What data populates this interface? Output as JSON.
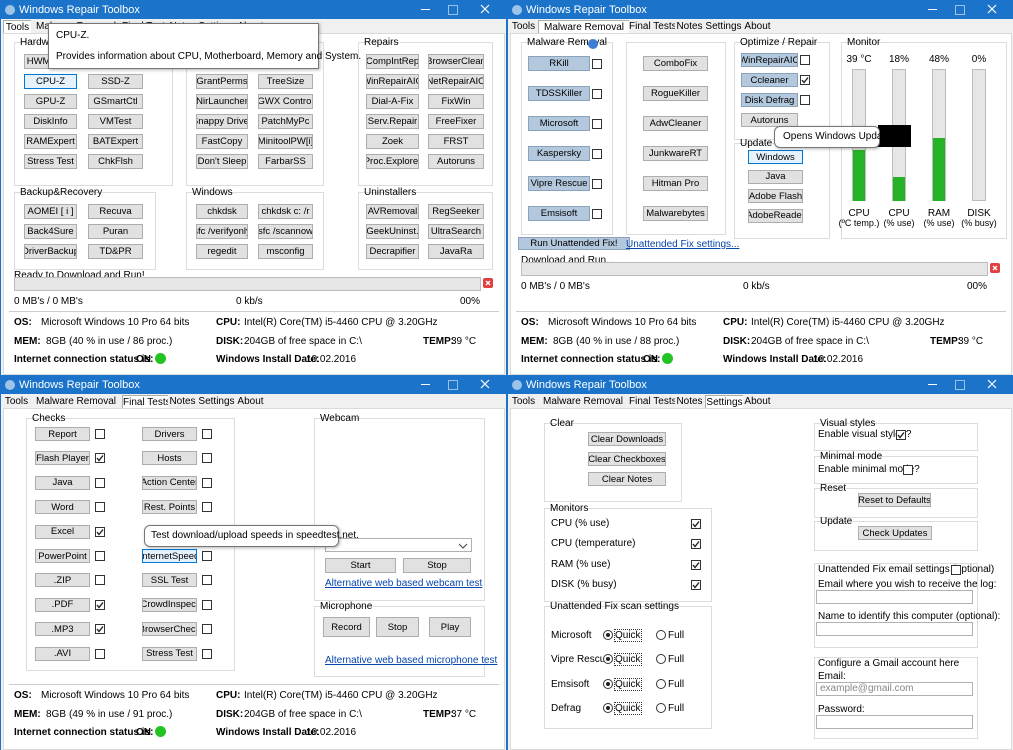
{
  "app_title": "Windows Repair Toolbox",
  "tabs": [
    "Tools",
    "Malware Removal",
    "Final Tests",
    "Notes",
    "Settings",
    "About"
  ],
  "footer_labels": {
    "os": "OS:",
    "cpu": "CPU:",
    "mem": "MEM:",
    "disk": "DISK:",
    "temp": "TEMP:",
    "internet": "Internet connection status is:",
    "install_date": "Windows Install Date:"
  },
  "tools_window": {
    "tooltip": {
      "title": "CPU-Z.",
      "text": "Provides information about CPU, Motherboard, Memory and System."
    },
    "hardware": {
      "title": "Hardware",
      "buttons": [
        "HWMonitor",
        "CPU-Z",
        "SSD-Z",
        "GPU-Z",
        "GSmartCtl",
        "DiskInfo",
        "VMTest",
        "RAMExpert",
        "BATExpert",
        "Stress Test",
        "ChkFlsh"
      ]
    },
    "tools": {
      "buttons": [
        "GrantPerms",
        "TreeSize",
        "NirLauncher",
        "GWX Control",
        "Snappy Driver",
        "PatchMyPc",
        "FastCopy",
        "MinitoolPW[i]",
        "Don't Sleep",
        "FarbarSS"
      ]
    },
    "repairs": {
      "title": "Repairs",
      "buttons": [
        "CompIntRep",
        "BrowserClean",
        "WinRepairAIO",
        "NetRepairAIO",
        "Dial-A-Fix",
        "FixWin",
        "Serv.Repair",
        "FreeFixer",
        "Zoek",
        "FRST",
        "Proc.Explorer",
        "Autoruns"
      ]
    },
    "backup": {
      "title": "Backup&Recovery",
      "buttons": [
        "AOMEI [ i ]",
        "Recuva",
        "Back4Sure",
        "Puran",
        "DriverBackup",
        "TD&PR"
      ]
    },
    "windows": {
      "title": "Windows",
      "buttons": [
        "chkdsk",
        "chkdsk c: /r",
        "sfc /verifyonly",
        "sfc /scannow",
        "regedit",
        "msconfig"
      ]
    },
    "uninstallers": {
      "title": "Uninstallers",
      "buttons": [
        "AVRemoval",
        "RegSeeker",
        "GeekUninst.",
        "UltraSearch",
        "Decrapifier",
        "JavaRa"
      ]
    },
    "download": {
      "status": "Ready to Download and Run!",
      "size": "0 MB's / 0 MB's",
      "speed": "0 kb/s",
      "percent": "00%"
    },
    "footer": {
      "os": "Microsoft Windows 10 Pro 64 bits",
      "cpu": "Intel(R) Core(TM) i5-4460  CPU @ 3.20GHz",
      "mem": "8GB",
      "mem_detail": "(40 % in use / 86 proc.)",
      "disk": "204GB of free space in C:\\",
      "temp": "39 °C",
      "internet": "ON",
      "install_date": "10.02.2016"
    }
  },
  "malware_window": {
    "malware": {
      "title": "Malware Removal",
      "buttons": [
        "RKill",
        "TDSSKiller",
        "Microsoft",
        "Kaspersky",
        "Vipre Rescue",
        "Emsisoft"
      ],
      "checked": [
        false,
        false,
        false,
        false,
        false,
        false
      ],
      "more_buttons": [
        "ComboFix",
        "RogueKiller",
        "AdwCleaner",
        "JunkwareRT",
        "Hitman Pro",
        "Malwarebytes"
      ]
    },
    "run_button": "Run Unattended Fix!",
    "settings_link": "Unattended Fix settings...",
    "optimize": {
      "title": "Optimize / Repair",
      "buttons": [
        "WinRepairAIO",
        "Ccleaner",
        "Disk Defrag",
        "Autoruns"
      ],
      "checked": [
        false,
        true,
        false
      ]
    },
    "update": {
      "title": "Update",
      "buttons": [
        "Windows",
        "Java",
        "Adobe Flash",
        "AdobeReader"
      ]
    },
    "tooltip": "Opens Windows Update.",
    "monitor": {
      "title": "Monitor",
      "gauges": [
        {
          "value": 39,
          "label": "39 °C",
          "name": "CPU",
          "unit": "(ºC temp.)"
        },
        {
          "value": 18,
          "label": "18%",
          "name": "CPU",
          "unit": "(% use)"
        },
        {
          "value": 48,
          "label": "48%",
          "name": "RAM",
          "unit": "(% use)"
        },
        {
          "value": 0,
          "label": "0%",
          "name": "DISK",
          "unit": "(% busy)"
        }
      ]
    },
    "download": {
      "status": "Download and Run...",
      "size": "0 MB's / 0 MB's",
      "speed": "0 kb/s",
      "percent": "00%"
    },
    "footer": {
      "os": "Microsoft Windows 10 Pro 64 bits",
      "cpu": "Intel(R) Core(TM) i5-4460  CPU @ 3.20GHz",
      "mem": "8GB",
      "mem_detail": "(40 % in use / 88 proc.)",
      "disk": "204GB of free space in C:\\",
      "temp": "39 °C",
      "internet": "ON",
      "install_date": "10.02.2016"
    }
  },
  "final_tests_window": {
    "checks": {
      "title": "Checks",
      "buttons": [
        "Report",
        "Flash Player",
        "Java",
        "Word",
        "Excel",
        "PowerPoint",
        ".ZIP",
        ".PDF",
        ".MP3",
        ".AVI"
      ],
      "checked": [
        false,
        true,
        false,
        false,
        true,
        false,
        false,
        true,
        true,
        false
      ],
      "more_buttons": [
        "Drivers",
        "Hosts",
        "Action Center",
        "Rest. Points",
        "InternetSpeed",
        "SSL Test",
        "CrowdInspect",
        "BrowserCheck",
        "Stress Test"
      ],
      "more_checked": [
        false,
        false,
        false,
        false,
        false,
        false,
        false,
        false,
        false
      ]
    },
    "tooltip": "Test download/upload speeds in speedtest.net.",
    "webcam": {
      "title": "Webcam",
      "start": "Start",
      "stop": "Stop",
      "link": "Alternative web based webcam test"
    },
    "microphone": {
      "title": "Microphone",
      "record": "Record",
      "stop": "Stop",
      "play": "Play",
      "link": "Alternative web based microphone test"
    },
    "footer": {
      "os": "Microsoft Windows 10 Pro 64 bits",
      "cpu": "Intel(R) Core(TM) i5-4460  CPU @ 3.20GHz",
      "mem": "8GB",
      "mem_detail": "(49 % in use / 91 proc.)",
      "disk": "204GB of free space in C:\\",
      "temp": "37 °C",
      "internet": "ON",
      "install_date": "10.02.2016"
    }
  },
  "settings_window": {
    "clear": {
      "title": "Clear",
      "buttons": [
        "Clear Downloads",
        "Clear Checkboxes",
        "Clear Notes"
      ]
    },
    "monitors": {
      "title": "Monitors",
      "items": [
        "CPU (% use)",
        "CPU (temperature)",
        "RAM (% use)",
        "DISK (% busy)"
      ],
      "checked": [
        true,
        true,
        true,
        true
      ]
    },
    "scan": {
      "title": "Unattended Fix scan settings",
      "items": [
        "Microsoft",
        "Vipre Rescue",
        "Emsisoft",
        "Defrag"
      ],
      "options": [
        "Quick",
        "Full"
      ],
      "selected": [
        0,
        0,
        0,
        0
      ]
    },
    "visual": {
      "title": "Visual styles",
      "label": "Enable visual styles?",
      "checked": true
    },
    "minimal": {
      "title": "Minimal mode",
      "label": "Enable minimal mode?",
      "checked": false
    },
    "reset": {
      "title": "Reset",
      "button": "Reset to Defaults"
    },
    "update": {
      "title": "Update",
      "button": "Check Updates"
    },
    "email": {
      "title": "Unattended Fix email settings (optional)",
      "checked": false,
      "receive": "Email where you wish to receive the log:",
      "computer": "Name to identify this computer (optional):",
      "gmail": "Configure a Gmail account here",
      "email_label": "Email:",
      "email_placeholder": "example@gmail.com",
      "password": "Password:"
    }
  }
}
